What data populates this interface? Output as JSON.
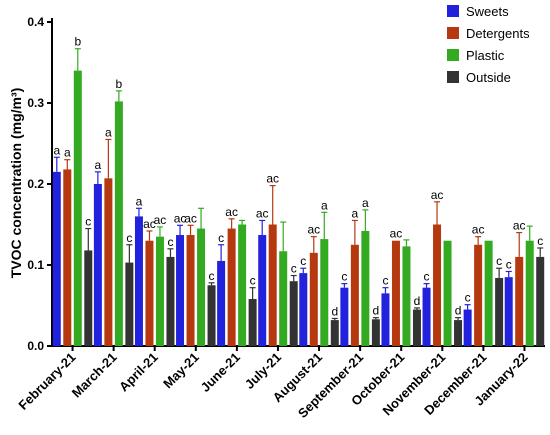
{
  "chart_data": {
    "type": "bar",
    "ylabel": "TVOC concentration (mg/m³)",
    "xlabel": "",
    "ylim": [
      0,
      0.4
    ],
    "yticks": [
      "0.0",
      "0.1",
      "0.2",
      "0.3",
      "0.4"
    ],
    "grid": false,
    "legend_position": "top-right",
    "categories": [
      "February-21",
      "March-21",
      "April-21",
      "May-21",
      "June-21",
      "July-21",
      "August-21",
      "September-21",
      "October-21",
      "November-21",
      "December-21",
      "January-22"
    ],
    "series": [
      {
        "name": "Sweets",
        "color": "#2222dd",
        "values": [
          0.215,
          0.2,
          0.16,
          0.137,
          0.105,
          0.137,
          0.09,
          0.072,
          0.065,
          0.072,
          0.045,
          0.085
        ],
        "errors": [
          0.018,
          0.015,
          0.01,
          0.012,
          0.02,
          0.018,
          0.006,
          0.005,
          0.007,
          0.005,
          0.006,
          0.007
        ],
        "letters": [
          "a",
          "a",
          "a",
          "ac",
          "c",
          "ac",
          "c",
          "c",
          "c",
          "c",
          "c",
          "c"
        ]
      },
      {
        "name": "Detergents",
        "color": "#b5380f",
        "values": [
          0.218,
          0.207,
          0.13,
          0.137,
          0.145,
          0.15,
          0.115,
          0.125,
          0.13,
          0.15,
          0.125,
          0.11
        ],
        "errors": [
          0.012,
          0.048,
          0.012,
          0.012,
          0.012,
          0.048,
          0.02,
          0.03,
          0.0,
          0.028,
          0.01,
          0.03
        ],
        "letters": [
          "a",
          "a",
          "ac",
          "ac",
          "ac",
          "ac",
          "ac",
          "a",
          "ac",
          "ac",
          "ac",
          "ac"
        ]
      },
      {
        "name": "Plastic",
        "color": "#33aa22",
        "values": [
          0.34,
          0.302,
          0.135,
          0.145,
          0.15,
          0.117,
          0.132,
          0.142,
          0.123,
          0.13,
          0.13,
          0.13
        ],
        "errors": [
          0.027,
          0.013,
          0.012,
          0.025,
          0.005,
          0.036,
          0.033,
          0.026,
          0.008,
          0.0,
          0.0,
          0.018
        ],
        "letters": [
          "b",
          "b",
          "ac",
          "",
          "",
          "",
          "a",
          "a",
          "",
          "",
          "",
          ""
        ]
      },
      {
        "name": "Outside",
        "color": "#333333",
        "values": [
          0.118,
          0.103,
          0.11,
          0.075,
          0.058,
          0.08,
          0.032,
          0.033,
          0.045,
          0.032,
          0.084,
          0.11
        ],
        "errors": [
          0.027,
          0.022,
          0.01,
          0.003,
          0.014,
          0.007,
          0.002,
          0.002,
          0.002,
          0.003,
          0.012,
          0.011
        ],
        "letters": [
          "c",
          "c",
          "c",
          "c",
          "c",
          "c",
          "d",
          "d",
          "d",
          "d",
          "c",
          "c"
        ]
      }
    ]
  }
}
